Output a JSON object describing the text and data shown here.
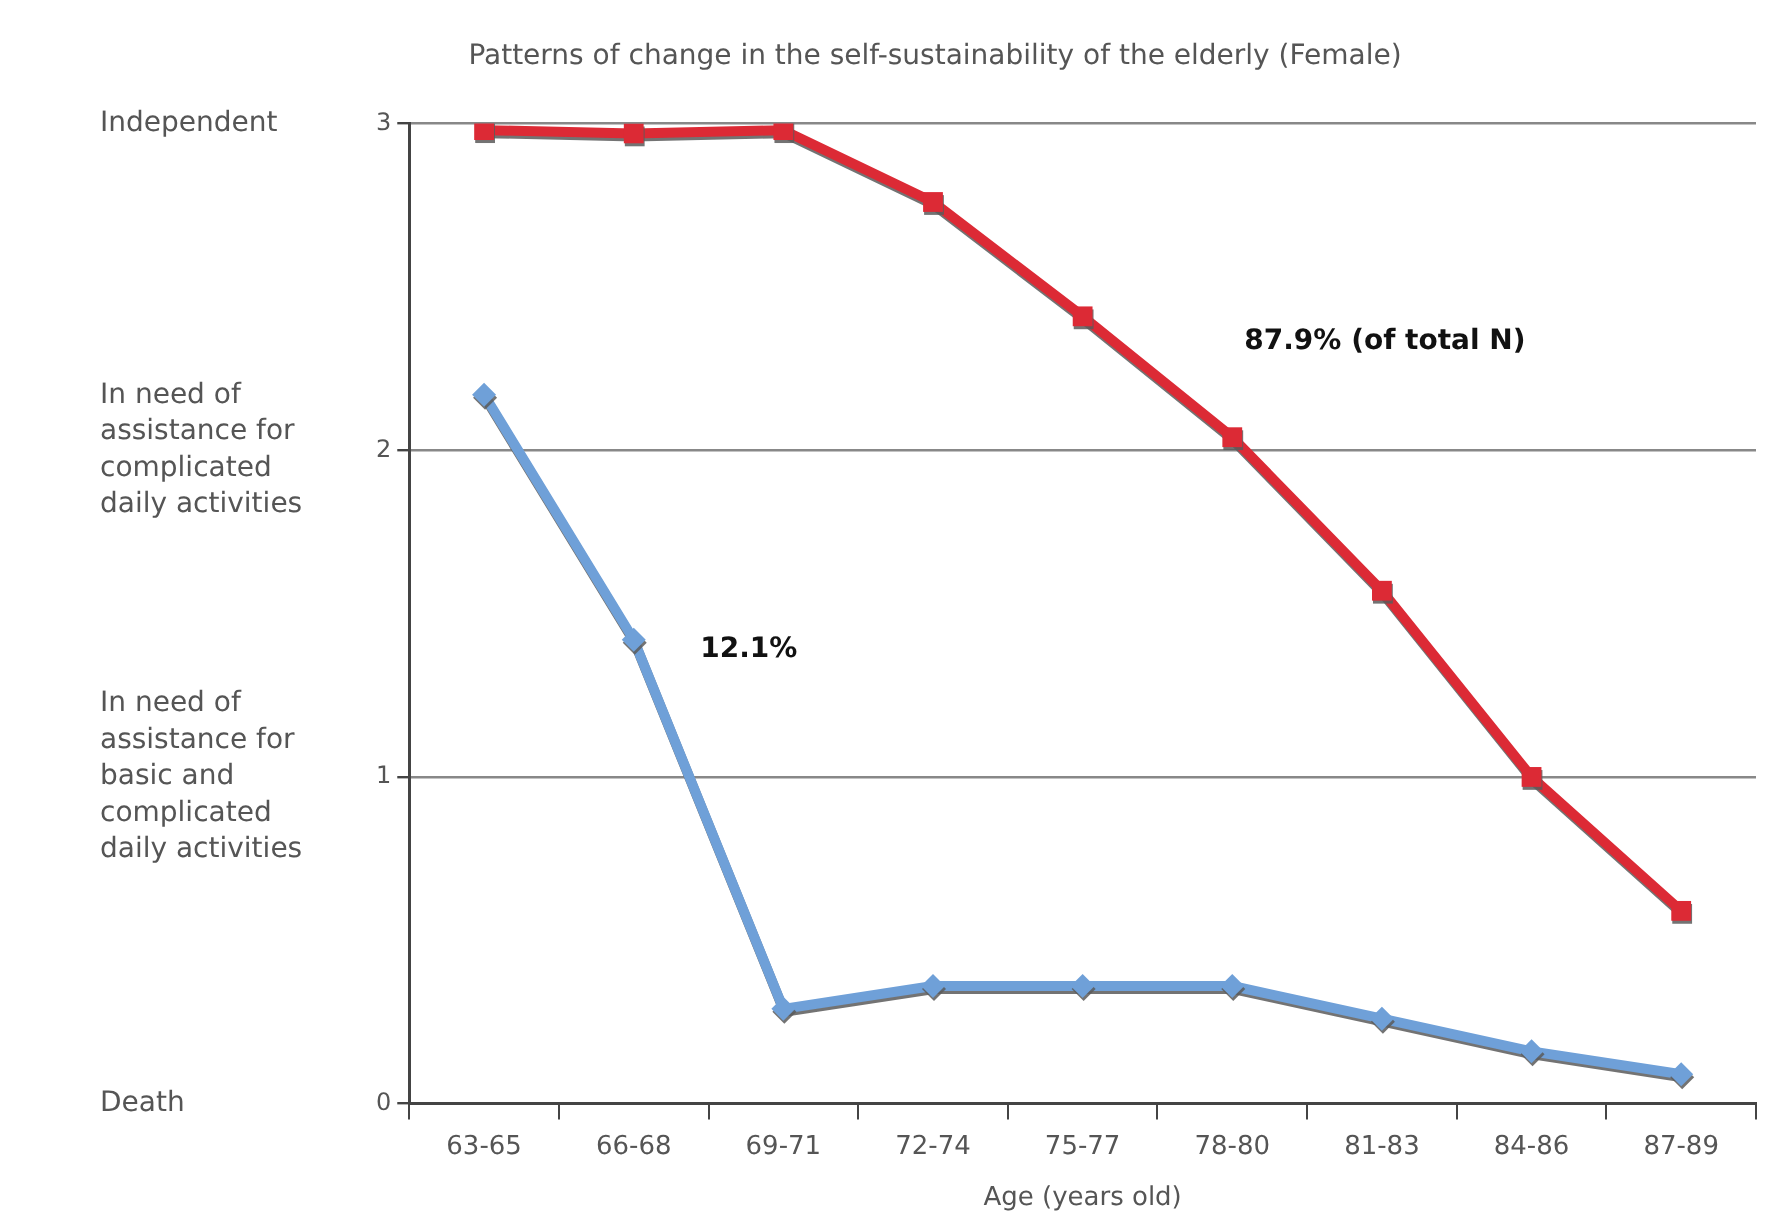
{
  "chart_data": {
    "type": "line",
    "title": "Patterns of change in the self-sustainability of the elderly (Female)",
    "xlabel": "Age (years old)",
    "categories": [
      "63-65",
      "66-68",
      "69-71",
      "72-74",
      "75-77",
      "78-80",
      "81-83",
      "84-86",
      "87-89"
    ],
    "series": [
      {
        "color": "#dc2a35",
        "marker": "square",
        "values": [
          2.98,
          2.97,
          2.98,
          2.76,
          2.41,
          2.04,
          1.57,
          1.0,
          0.59
        ]
      },
      {
        "color": "#6fa0d8",
        "marker": "diamond",
        "values": [
          2.17,
          1.42,
          0.29,
          0.36,
          0.36,
          0.36,
          0.26,
          0.16,
          0.09
        ]
      }
    ],
    "ylim": [
      0,
      3
    ],
    "yticks": [
      0,
      1,
      2,
      3
    ],
    "y2_categories": [
      "Independent",
      "In need of assistance for complicated daily activities",
      "In need of assistance for basic and complicated daily activities",
      "Death"
    ],
    "annotations": [
      "87.9% (of total N)",
      "12.1%"
    ],
    "grid": "y",
    "legend": false,
    "line_style": "solid"
  }
}
